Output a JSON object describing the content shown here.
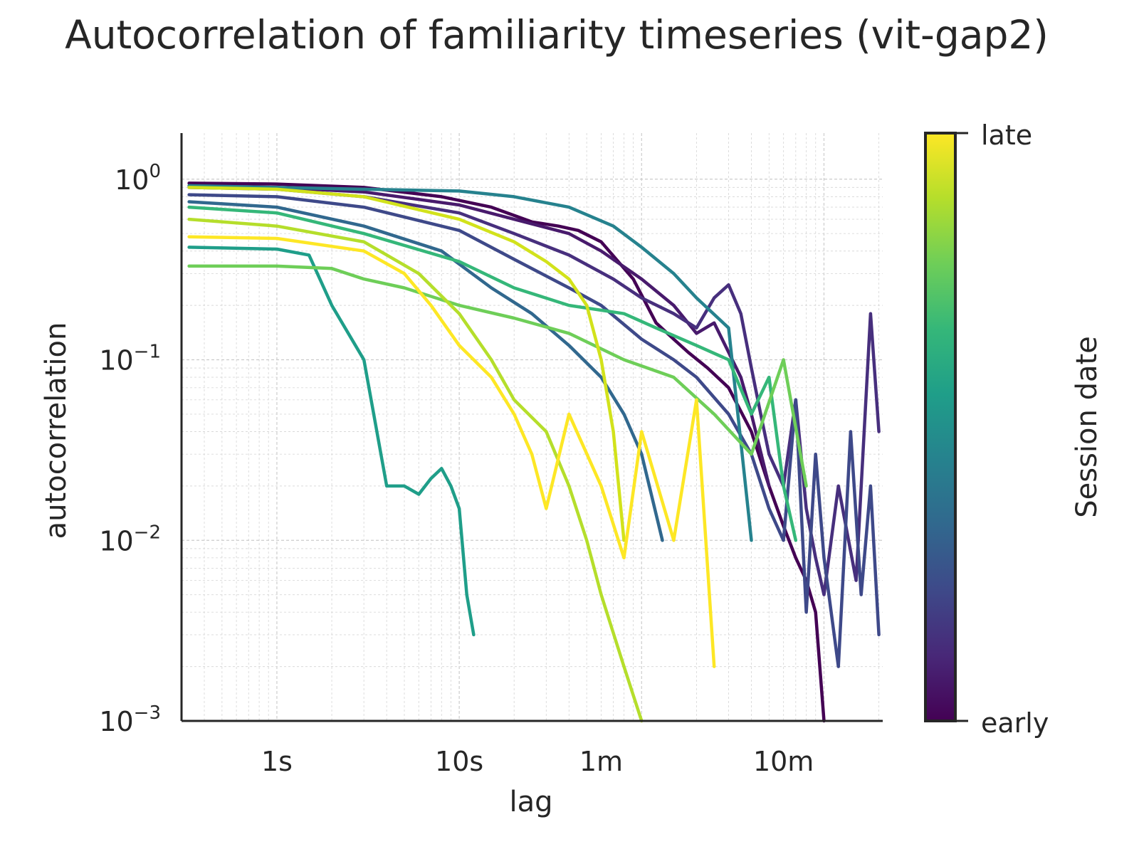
{
  "chart_data": {
    "type": "line",
    "title": "Autocorrelation of familiarity timeseries (vit-gap2)",
    "xlabel": "lag",
    "ylabel": "autocorrelation",
    "x_scale": "log",
    "y_scale": "log",
    "x_unit": "s",
    "xlim": [
      0.3,
      2100
    ],
    "ylim": [
      0.001,
      1.8
    ],
    "x_ticks": [
      {
        "value": 1,
        "label": "1s"
      },
      {
        "value": 10,
        "label": "10s"
      },
      {
        "value": 60,
        "label": "1m"
      },
      {
        "value": 600,
        "label": "10m"
      }
    ],
    "y_ticks": [
      {
        "value": 1,
        "base": "10",
        "exp": "0"
      },
      {
        "value": 0.1,
        "base": "10",
        "exp": "−1"
      },
      {
        "value": 0.01,
        "base": "10",
        "exp": "−2"
      },
      {
        "value": 0.001,
        "base": "10",
        "exp": "−3"
      }
    ],
    "grid": true,
    "colorbar": {
      "label": "Session date",
      "top_label": "late",
      "bottom_label": "early",
      "colormap": [
        "#440154",
        "#482878",
        "#3e4989",
        "#31688e",
        "#26828e",
        "#1f9e89",
        "#35b779",
        "#6ece58",
        "#b5de2b",
        "#fde725"
      ]
    },
    "series": [
      {
        "color": "#440154",
        "x": [
          0.33,
          1,
          3,
          8,
          15,
          25,
          35,
          45,
          60,
          90,
          120,
          150,
          180,
          230,
          300,
          400,
          500,
          600,
          700,
          800,
          900,
          1000
        ],
        "y": [
          0.95,
          0.94,
          0.9,
          0.8,
          0.7,
          0.58,
          0.55,
          0.52,
          0.45,
          0.28,
          0.16,
          0.13,
          0.11,
          0.09,
          0.07,
          0.04,
          0.02,
          0.012,
          0.008,
          0.006,
          0.004,
          0.001
        ]
      },
      {
        "color": "#481a6c",
        "x": [
          0.33,
          1,
          3,
          10,
          20,
          40,
          60,
          100,
          150,
          200,
          250,
          300,
          350,
          400,
          500
        ],
        "y": [
          0.92,
          0.9,
          0.85,
          0.72,
          0.6,
          0.5,
          0.4,
          0.28,
          0.2,
          0.14,
          0.16,
          0.11,
          0.08,
          0.05,
          0.02
        ]
      },
      {
        "color": "#472f7d",
        "x": [
          0.33,
          1,
          3,
          10,
          20,
          40,
          70,
          100,
          150,
          200,
          250,
          300,
          350,
          400,
          450,
          500,
          600,
          700,
          800,
          900,
          1000,
          1200,
          1500,
          1800,
          2000
        ],
        "y": [
          0.9,
          0.88,
          0.8,
          0.65,
          0.5,
          0.38,
          0.28,
          0.22,
          0.18,
          0.15,
          0.22,
          0.26,
          0.18,
          0.09,
          0.05,
          0.03,
          0.02,
          0.06,
          0.015,
          0.008,
          0.005,
          0.02,
          0.006,
          0.18,
          0.04
        ]
      },
      {
        "color": "#3e4989",
        "x": [
          0.33,
          1,
          3,
          10,
          20,
          40,
          60,
          100,
          150,
          200,
          300,
          400,
          500,
          600,
          700,
          800,
          900,
          1000,
          1200,
          1400,
          1600,
          1800,
          2000
        ],
        "y": [
          0.82,
          0.8,
          0.7,
          0.52,
          0.36,
          0.25,
          0.2,
          0.13,
          0.1,
          0.08,
          0.05,
          0.03,
          0.015,
          0.01,
          0.06,
          0.004,
          0.03,
          0.008,
          0.002,
          0.04,
          0.005,
          0.02,
          0.003
        ]
      },
      {
        "color": "#31688e",
        "x": [
          0.33,
          1,
          3,
          8,
          15,
          25,
          40,
          60,
          80,
          100,
          130
        ],
        "y": [
          0.75,
          0.7,
          0.55,
          0.4,
          0.25,
          0.18,
          0.12,
          0.08,
          0.05,
          0.03,
          0.01
        ]
      },
      {
        "color": "#26828e",
        "x": [
          0.33,
          1,
          3,
          10,
          20,
          40,
          70,
          100,
          150,
          200,
          300,
          400
        ],
        "y": [
          0.92,
          0.9,
          0.88,
          0.86,
          0.8,
          0.7,
          0.55,
          0.42,
          0.3,
          0.22,
          0.15,
          0.01
        ]
      },
      {
        "color": "#1f9e89",
        "x": [
          0.33,
          1,
          1.5,
          2,
          3,
          4,
          5,
          6,
          7,
          8,
          9,
          10,
          11,
          12
        ],
        "y": [
          0.42,
          0.41,
          0.38,
          0.2,
          0.1,
          0.02,
          0.02,
          0.018,
          0.022,
          0.025,
          0.02,
          0.015,
          0.005,
          0.003
        ]
      },
      {
        "color": "#35b779",
        "x": [
          0.33,
          1,
          3,
          10,
          20,
          40,
          80,
          120,
          200,
          300,
          400,
          500,
          600,
          700
        ],
        "y": [
          0.7,
          0.65,
          0.5,
          0.35,
          0.25,
          0.2,
          0.18,
          0.15,
          0.12,
          0.1,
          0.05,
          0.08,
          0.02,
          0.01
        ]
      },
      {
        "color": "#6ece58",
        "x": [
          0.33,
          1,
          2,
          3,
          5,
          10,
          20,
          40,
          80,
          150,
          250,
          400,
          600,
          800
        ],
        "y": [
          0.33,
          0.33,
          0.32,
          0.28,
          0.25,
          0.2,
          0.17,
          0.14,
          0.1,
          0.08,
          0.05,
          0.03,
          0.1,
          0.02
        ]
      },
      {
        "color": "#b5de2b",
        "x": [
          0.33,
          1,
          3,
          6,
          10,
          15,
          20,
          30,
          40,
          50,
          60,
          80,
          100
        ],
        "y": [
          0.6,
          0.55,
          0.45,
          0.3,
          0.18,
          0.1,
          0.06,
          0.04,
          0.02,
          0.01,
          0.005,
          0.002,
          0.001
        ]
      },
      {
        "color": "#d2e21b",
        "x": [
          0.33,
          1,
          3,
          10,
          20,
          30,
          40,
          50,
          60,
          70,
          80
        ],
        "y": [
          0.9,
          0.88,
          0.8,
          0.6,
          0.45,
          0.35,
          0.28,
          0.2,
          0.1,
          0.04,
          0.01
        ]
      },
      {
        "color": "#fde725",
        "x": [
          0.33,
          1,
          3,
          5,
          7,
          10,
          15,
          20,
          25,
          30,
          40,
          60,
          80,
          100,
          150,
          200,
          250
        ],
        "y": [
          0.48,
          0.47,
          0.4,
          0.3,
          0.2,
          0.12,
          0.08,
          0.05,
          0.03,
          0.015,
          0.05,
          0.02,
          0.008,
          0.04,
          0.01,
          0.06,
          0.002
        ]
      }
    ]
  }
}
